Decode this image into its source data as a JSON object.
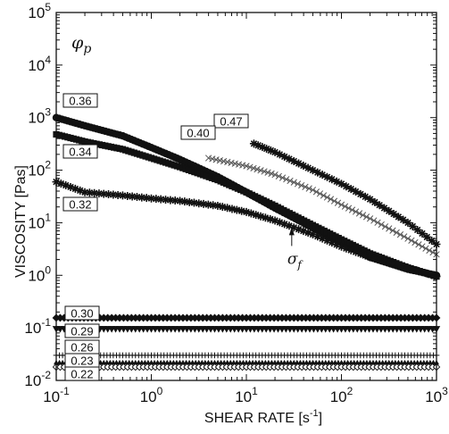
{
  "chart_data": {
    "type": "scatter",
    "xlabel": "SHEAR RATE [s",
    "xlabel_sup": "-1",
    "xlabel_end": "]",
    "ylabel": "VISCOSITY [Pas]",
    "xscale": "log",
    "yscale": "log",
    "xlim": [
      0.1,
      1000
    ],
    "ylim": [
      0.01,
      100000
    ],
    "legend_title": "φ",
    "legend_title_sub": "p",
    "x_ticks": [
      {
        "value": 0.1,
        "base": "10",
        "exp": "-1"
      },
      {
        "value": 1,
        "base": "10",
        "exp": "0"
      },
      {
        "value": 10,
        "base": "10",
        "exp": "1"
      },
      {
        "value": 100,
        "base": "10",
        "exp": "2"
      },
      {
        "value": 1000,
        "base": "10",
        "exp": "3"
      }
    ],
    "y_ticks": [
      {
        "value": 0.01,
        "base": "10",
        "exp": "-2"
      },
      {
        "value": 0.1,
        "base": "10",
        "exp": "-1"
      },
      {
        "value": 1,
        "base": "10",
        "exp": "0"
      },
      {
        "value": 10,
        "base": "10",
        "exp": "1"
      },
      {
        "value": 100,
        "base": "10",
        "exp": "2"
      },
      {
        "value": 1000,
        "base": "10",
        "exp": "3"
      },
      {
        "value": 10000,
        "base": "10",
        "exp": "4"
      },
      {
        "value": 100000,
        "base": "10",
        "exp": "5"
      }
    ],
    "annotation": {
      "symbol": "σ",
      "sub": "f",
      "x": 30,
      "y": 10
    },
    "series": [
      {
        "name": "0.47",
        "marker": "star",
        "x": [
          12,
          20,
          50,
          100,
          200,
          500,
          1000
        ],
        "y": [
          320,
          220,
          100,
          55,
          28,
          10,
          3.9
        ]
      },
      {
        "name": "0.40",
        "marker": "x",
        "x": [
          4,
          10,
          20,
          50,
          100,
          200,
          500,
          1000
        ],
        "y": [
          170,
          120,
          82,
          42,
          22,
          12,
          5,
          2.5
        ]
      },
      {
        "name": "0.36",
        "marker": "circle",
        "x": [
          0.1,
          0.2,
          0.5,
          1,
          2,
          5,
          10,
          20,
          50,
          100,
          200,
          500,
          1000
        ],
        "y": [
          1000,
          700,
          450,
          270,
          160,
          75,
          38,
          19,
          8,
          4.2,
          2.2,
          1.3,
          1.0
        ]
      },
      {
        "name": "0.34",
        "marker": "square",
        "x": [
          0.1,
          0.2,
          0.5,
          1,
          2,
          5,
          10,
          20,
          50,
          100,
          200,
          500,
          1000
        ],
        "y": [
          480,
          350,
          250,
          170,
          115,
          65,
          38,
          21,
          9,
          4.8,
          2.6,
          1.4,
          0.95
        ]
      },
      {
        "name": "0.32",
        "marker": "star",
        "x": [
          0.1,
          0.2,
          0.5,
          1,
          2,
          5,
          10,
          20,
          50,
          100,
          200,
          500,
          1000
        ],
        "y": [
          60,
          38,
          33,
          29,
          26,
          21,
          16,
          11,
          6,
          3.5,
          2.2,
          1.4,
          0.95
        ]
      },
      {
        "name": "0.30",
        "marker": "diamond",
        "x": [
          0.1,
          1,
          10,
          100,
          1000
        ],
        "y": [
          0.155,
          0.155,
          0.155,
          0.155,
          0.155
        ]
      },
      {
        "name": "0.29",
        "marker": "triangle-down",
        "x": [
          0.1,
          1,
          10,
          100,
          1000
        ],
        "y": [
          0.095,
          0.095,
          0.095,
          0.095,
          0.095
        ]
      },
      {
        "name": "0.26",
        "marker": "plus",
        "x": [
          0.1,
          1,
          10,
          100,
          1000
        ],
        "y": [
          0.03,
          0.03,
          0.03,
          0.03,
          0.03
        ]
      },
      {
        "name": "0.23",
        "marker": "triangle-up",
        "x": [
          0.1,
          1,
          10,
          100,
          1000
        ],
        "y": [
          0.022,
          0.022,
          0.022,
          0.022,
          0.022
        ]
      },
      {
        "name": "0.22",
        "marker": "open-diamond",
        "x": [
          0.1,
          1,
          10,
          100,
          1000
        ],
        "y": [
          0.018,
          0.018,
          0.018,
          0.018,
          0.018
        ]
      }
    ]
  }
}
